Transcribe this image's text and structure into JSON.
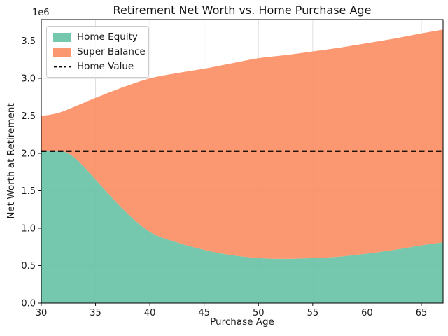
{
  "figure": {
    "title": "Retirement Net Worth vs. Home Purchase Age",
    "xlabel": "Purchase Age",
    "ylabel": "Net Worth at Retirement",
    "y_offset_label": "1e6"
  },
  "chart_data": {
    "type": "area",
    "stacked": true,
    "title": "Retirement Net Worth vs. Home Purchase Age",
    "xlabel": "Purchase Age",
    "ylabel": "Net Worth at Retirement",
    "y_unit_multiplier": "1e6",
    "x": [
      30,
      31,
      32,
      33,
      34,
      35,
      37.5,
      40,
      42.5,
      45,
      47.5,
      50,
      52.5,
      55,
      57.5,
      60,
      62.5,
      65,
      67
    ],
    "series": [
      {
        "name": "Home Equity",
        "color": "#66c2a5",
        "values": [
          2.03,
          2.03,
          2.03,
          1.95,
          1.81,
          1.65,
          1.26,
          0.95,
          0.81,
          0.71,
          0.64,
          0.6,
          0.59,
          0.6,
          0.62,
          0.66,
          0.71,
          0.77,
          0.81
        ]
      },
      {
        "name": "Super Balance",
        "color": "#fc8d62",
        "values": [
          0.47,
          0.49,
          0.53,
          0.67,
          0.87,
          1.09,
          1.62,
          2.05,
          2.26,
          2.42,
          2.56,
          2.67,
          2.72,
          2.76,
          2.79,
          2.81,
          2.82,
          2.83,
          2.84
        ]
      }
    ],
    "reference_line": {
      "name": "Home Value",
      "value": 2.03,
      "style": "dashed",
      "color": "#000000"
    },
    "xlim": [
      30,
      67
    ],
    "ylim": [
      0,
      3.785
    ],
    "x_ticks": [
      30,
      35,
      40,
      45,
      50,
      55,
      60,
      65
    ],
    "y_ticks": [
      0.0,
      0.5,
      1.0,
      1.5,
      2.0,
      2.5,
      3.0,
      3.5
    ],
    "grid": true,
    "legend_position": "upper left",
    "fill_alpha": 0.9
  },
  "legend": {
    "items": [
      {
        "label": "Home Equity",
        "type": "patch",
        "color": "#66c2a5"
      },
      {
        "label": "Super Balance",
        "type": "patch",
        "color": "#fc8d62"
      },
      {
        "label": "Home Value",
        "type": "dashed-line",
        "color": "#000000"
      }
    ]
  }
}
